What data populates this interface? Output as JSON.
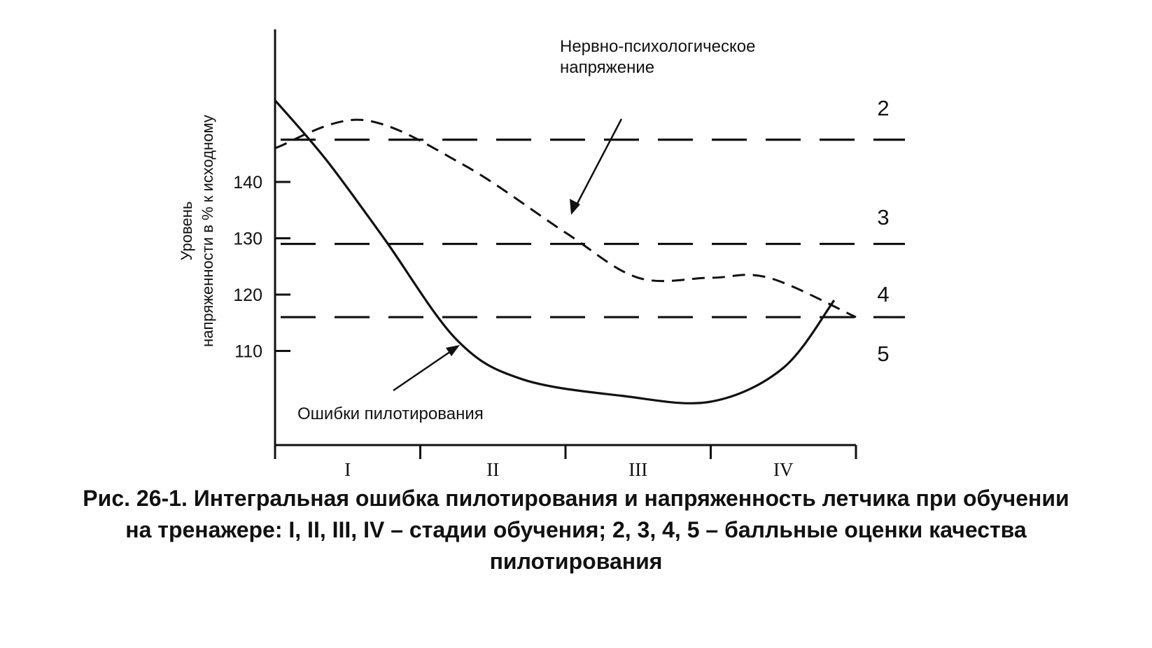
{
  "chart_data": {
    "type": "line",
    "title": "",
    "ylabel_line1": "Уровень",
    "ylabel_line2": "напряженности в % к исходному",
    "y_ticks": [
      110,
      120,
      130,
      140
    ],
    "ylim": [
      97,
      156
    ],
    "x_categories": [
      "I",
      "II",
      "III",
      "IV"
    ],
    "xlim": [
      0,
      4
    ],
    "grid": false,
    "series": [
      {
        "name": "Нервно-психологическое напряжение",
        "style": "dashed",
        "x": [
          0,
          0.6,
          1.3,
          2.0,
          2.5,
          3.0,
          3.4,
          4.0
        ],
        "y": [
          146,
          151,
          143,
          131,
          123,
          123,
          123,
          116
        ]
      },
      {
        "name": "Ошибки пилотирования",
        "style": "solid",
        "x": [
          0,
          0.35,
          0.75,
          1.25,
          1.7,
          2.4,
          3.0,
          3.5,
          3.85
        ],
        "y": [
          154.5,
          144,
          130,
          112,
          105,
          102,
          101,
          107,
          119
        ]
      }
    ],
    "grade_lines": [
      {
        "label": "2",
        "y": 147.5
      },
      {
        "label": "3",
        "y": 129
      },
      {
        "label": "4",
        "y": 116
      }
    ],
    "grade_labels": [
      "2",
      "3",
      "4",
      "5"
    ],
    "annotations": {
      "stress_line1": "Нервно-психологическое",
      "stress_line2": "напряжение",
      "errors": "Ошибки пилотирования"
    },
    "colors": {
      "ink": "#111111",
      "background": "#ffffff"
    }
  },
  "caption": {
    "line1": "Рис. 26-1. Интегральная ошибка пилотирования и напряженность летчика при обучении",
    "line2": "на тренажере: I, II, III, IV – стадии обучения; 2, 3, 4, 5 – балльные оценки качества",
    "line3": "пилотирования"
  }
}
